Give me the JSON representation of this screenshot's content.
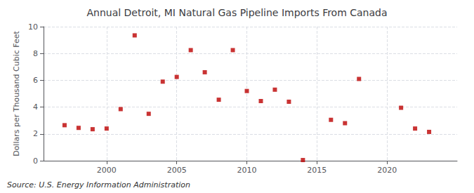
{
  "chart_data": {
    "type": "scatter",
    "title": "Annual Detroit, MI Natural Gas Pipeline Imports From Canada",
    "ylabel": "Dollars per Thousand Cubic Feet",
    "annotation": "Source: U.S. Energy Information Administration",
    "x": [
      1997,
      1998,
      1999,
      2000,
      2001,
      2002,
      2003,
      2004,
      2005,
      2006,
      2007,
      2008,
      2009,
      2010,
      2011,
      2012,
      2013,
      2014,
      2016,
      2017,
      2018,
      2021,
      2022,
      2023
    ],
    "values": [
      2.65,
      2.45,
      2.35,
      2.4,
      3.85,
      9.35,
      3.5,
      5.9,
      6.25,
      8.25,
      6.6,
      4.55,
      8.25,
      5.2,
      4.45,
      5.3,
      4.4,
      0.05,
      3.05,
      2.8,
      6.1,
      3.95,
      2.4,
      2.15
    ],
    "color": "#BB0000",
    "marker": "square",
    "xlim": [
      1995.5,
      2025
    ],
    "ylim": [
      0,
      10
    ],
    "xticks": [
      2000,
      2005,
      2010,
      2015,
      2020
    ],
    "yticks": [
      0,
      2,
      4,
      6,
      8,
      10
    ],
    "grid": true
  }
}
